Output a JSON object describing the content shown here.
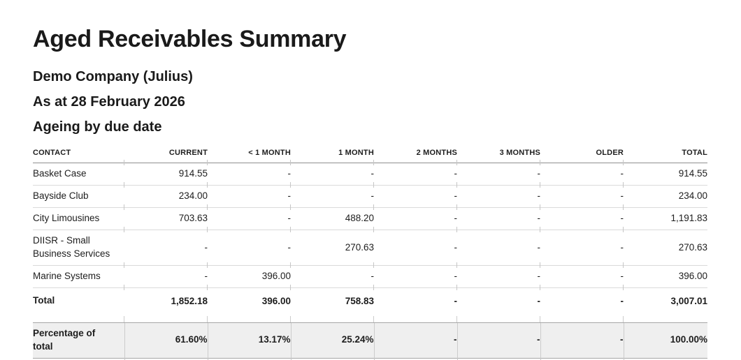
{
  "report": {
    "title": "Aged Receivables Summary",
    "company": "Demo Company (Julius)",
    "as_at": "As at 28 February 2026",
    "ageing_basis": "Ageing by due date"
  },
  "table": {
    "columns": [
      "CONTACT",
      "CURRENT",
      "< 1 MONTH",
      "1 MONTH",
      "2 MONTHS",
      "3 MONTHS",
      "OLDER",
      "TOTAL"
    ],
    "rows": [
      {
        "contact": "Basket Case",
        "values": [
          "914.55",
          "-",
          "-",
          "-",
          "-",
          "-",
          "914.55"
        ]
      },
      {
        "contact": "Bayside Club",
        "values": [
          "234.00",
          "-",
          "-",
          "-",
          "-",
          "-",
          "234.00"
        ]
      },
      {
        "contact": "City Limousines",
        "values": [
          "703.63",
          "-",
          "488.20",
          "-",
          "-",
          "-",
          "1,191.83"
        ]
      },
      {
        "contact": "DIISR - Small Business Services",
        "values": [
          "-",
          "-",
          "270.63",
          "-",
          "-",
          "-",
          "270.63"
        ]
      },
      {
        "contact": "Marine Systems",
        "values": [
          "-",
          "396.00",
          "-",
          "-",
          "-",
          "-",
          "396.00"
        ]
      }
    ],
    "total_row": {
      "label": "Total",
      "values": [
        "1,852.18",
        "396.00",
        "758.83",
        "-",
        "-",
        "-",
        "3,007.01"
      ]
    },
    "percentage_row": {
      "label": "Percentage of total",
      "values": [
        "61.60%",
        "13.17%",
        "25.24%",
        "-",
        "-",
        "-",
        "100.00%"
      ]
    }
  },
  "colors": {
    "text": "#1a1a1a",
    "header_rule": "#8f8f8f",
    "row_rule": "#dadada",
    "percentage_row_background": "#efefef",
    "percentage_row_border": "#a6a6a6",
    "column_separator": "#cccccc"
  }
}
